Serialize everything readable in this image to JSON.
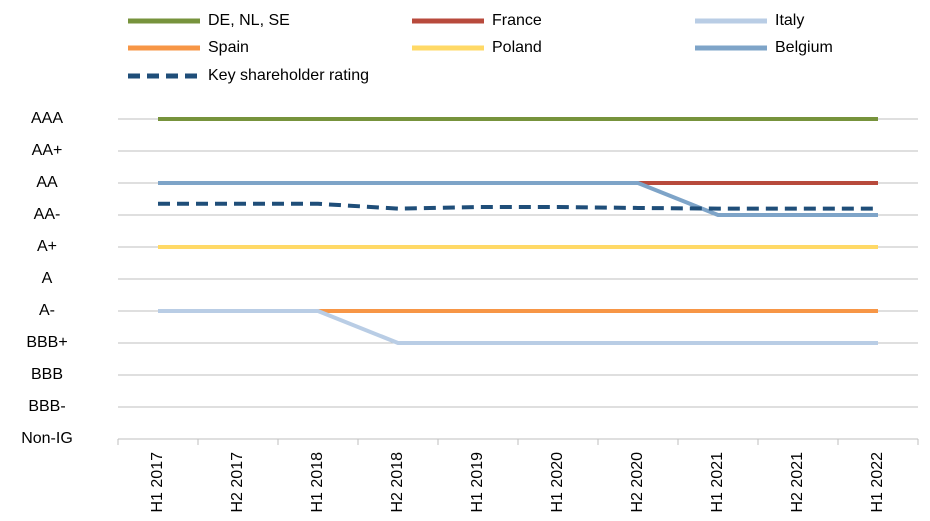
{
  "chart_data": {
    "type": "line",
    "categories": [
      "H1 2017",
      "H2 2017",
      "H1 2018",
      "H2 2018",
      "H1 2019",
      "H1 2020",
      "H2 2020",
      "H1 2021",
      "H2 2021",
      "H1 2022"
    ],
    "ylim": [
      0,
      10
    ],
    "yticks": [
      {
        "value": 0,
        "label": "Non-IG"
      },
      {
        "value": 1,
        "label": "BBB-"
      },
      {
        "value": 2,
        "label": "BBB"
      },
      {
        "value": 3,
        "label": "BBB+"
      },
      {
        "value": 4,
        "label": "A-"
      },
      {
        "value": 5,
        "label": "A"
      },
      {
        "value": 6,
        "label": "A+"
      },
      {
        "value": 7,
        "label": "AA-"
      },
      {
        "value": 8,
        "label": "AA"
      },
      {
        "value": 9,
        "label": "AA+"
      },
      {
        "value": 10,
        "label": "AAA"
      }
    ],
    "grid": true,
    "legend": "top",
    "series": [
      {
        "name": "DE, NL, SE",
        "color": "#77933c",
        "values": [
          10,
          10,
          10,
          10,
          10,
          10,
          10,
          10,
          10,
          10
        ]
      },
      {
        "name": "France",
        "color": "#b84a3c",
        "values": [
          8,
          8,
          8,
          8,
          8,
          8,
          8,
          8,
          8,
          8
        ]
      },
      {
        "name": "Italy",
        "color": "#b9cde5",
        "values": [
          4,
          4,
          4,
          3,
          3,
          3,
          3,
          3,
          3,
          3
        ]
      },
      {
        "name": "Spain",
        "color": "#f79646",
        "values": [
          4,
          4,
          4,
          4,
          4,
          4,
          4,
          4,
          4,
          4
        ]
      },
      {
        "name": "Poland",
        "color": "#ffd966",
        "values": [
          6,
          6,
          6,
          6,
          6,
          6,
          6,
          6,
          6,
          6
        ]
      },
      {
        "name": "Belgium",
        "color": "#7ea4c8",
        "values": [
          8,
          8,
          8,
          8,
          8,
          8,
          8,
          7,
          7,
          7
        ]
      },
      {
        "name": "Key shareholder rating",
        "color": "#1f4e79",
        "dashed": true,
        "values": [
          7.35,
          7.35,
          7.35,
          7.2,
          7.25,
          7.25,
          7.22,
          7.2,
          7.2,
          7.2
        ]
      }
    ]
  }
}
